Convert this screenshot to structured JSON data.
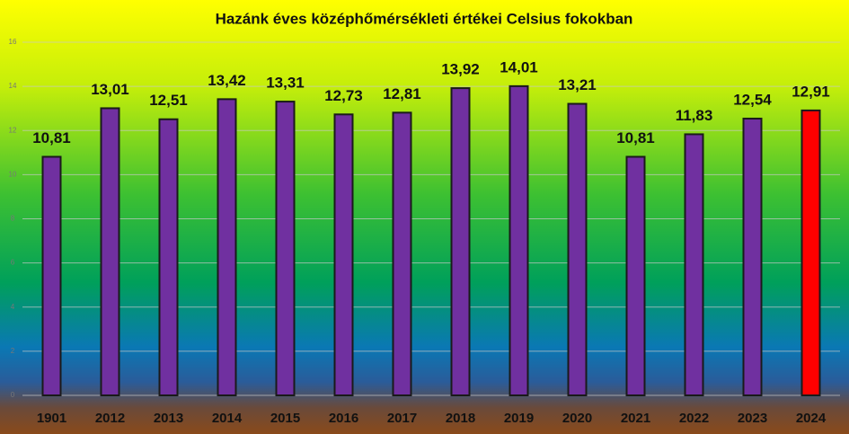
{
  "chart_data": {
    "type": "bar",
    "title": "Hazánk éves középhőmérsékleti értékei Celsius fokokban",
    "categories": [
      "1901",
      "2012",
      "2013",
      "2014",
      "2015",
      "2016",
      "2017",
      "2018",
      "2019",
      "2020",
      "2021",
      "2022",
      "2023",
      "2024"
    ],
    "values": [
      10.81,
      13.01,
      12.51,
      13.42,
      13.31,
      12.73,
      12.81,
      13.92,
      14.01,
      13.21,
      10.81,
      11.83,
      12.54,
      12.91
    ],
    "value_labels": [
      "10,81",
      "13,01",
      "12,51",
      "13,42",
      "13,31",
      "12,73",
      "12,81",
      "13,92",
      "14,01",
      "13,21",
      "10,81",
      "11,83",
      "12,54",
      "12,91"
    ],
    "colors": [
      "#7030a0",
      "#7030a0",
      "#7030a0",
      "#7030a0",
      "#7030a0",
      "#7030a0",
      "#7030a0",
      "#7030a0",
      "#7030a0",
      "#7030a0",
      "#7030a0",
      "#7030a0",
      "#7030a0",
      "#ff0000"
    ],
    "ylim": [
      0,
      16
    ],
    "yticks": [
      0,
      2,
      4,
      6,
      8,
      10,
      12,
      14,
      16
    ],
    "grid": true
  }
}
